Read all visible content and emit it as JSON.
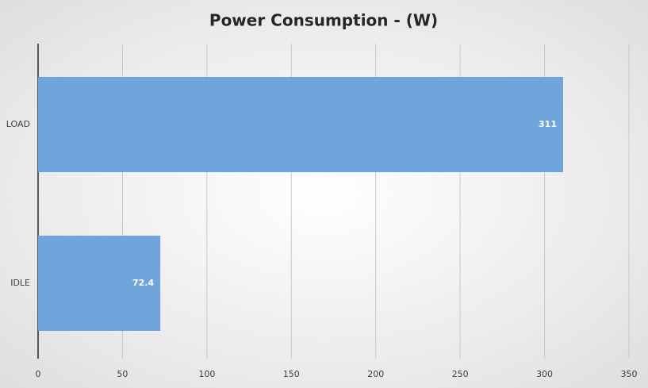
{
  "chart_data": {
    "type": "barh",
    "title": "Power Consumption - (W)",
    "categories": [
      "LOAD",
      "IDLE"
    ],
    "values": [
      311,
      72.4
    ],
    "color": "#6fa5da",
    "xlim": [
      0,
      350
    ],
    "xticks": [
      0,
      50,
      100,
      150,
      200,
      250,
      300,
      350
    ],
    "grid": true
  }
}
